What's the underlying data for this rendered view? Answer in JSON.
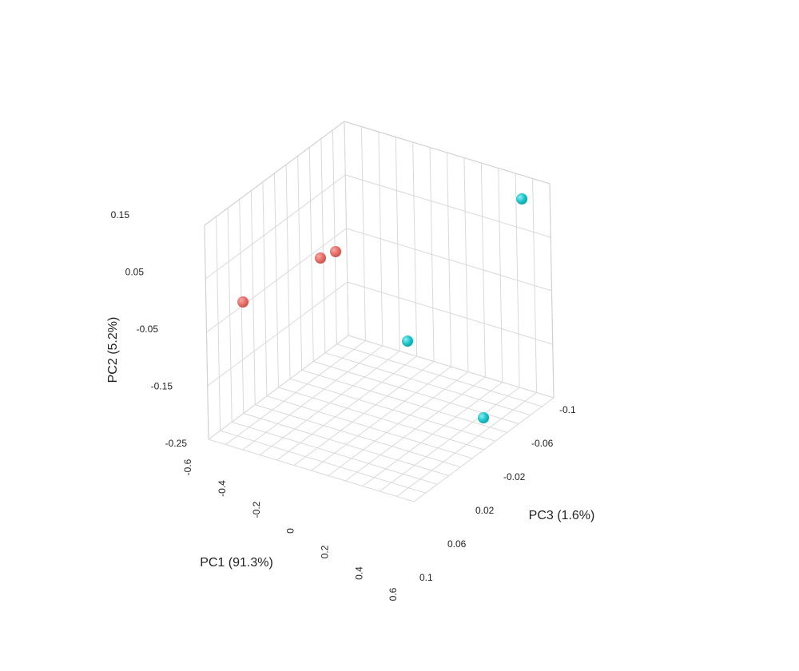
{
  "chart_data": {
    "type": "scatter3d",
    "axes": {
      "x": {
        "label": "PC1 (91.3%)",
        "range": [
          -0.6,
          0.6
        ],
        "ticks": [
          -0.6,
          -0.4,
          -0.2,
          0,
          0.2,
          0.4,
          0.6
        ],
        "tick_labels": [
          "-0.6",
          "-0.4",
          "-0.2",
          "0",
          "0.2",
          "0.4",
          "0.6"
        ]
      },
      "y": {
        "label": "PC2 (5.2%)",
        "range": [
          -0.25,
          0.15
        ],
        "ticks": [
          -0.25,
          -0.15,
          -0.05,
          0.05,
          0.15
        ],
        "tick_labels": [
          "-0.25",
          "-0.15",
          "-0.05",
          "0.05",
          "0.15"
        ]
      },
      "z": {
        "label": "PC3 (1.6%)",
        "range": [
          -0.1,
          0.1
        ],
        "ticks": [
          -0.1,
          -0.06,
          -0.02,
          0.02,
          0.06,
          0.1
        ],
        "tick_labels": [
          "-0.1",
          "-0.06",
          "-0.02",
          "0.02",
          "0.06",
          "0.1"
        ]
      }
    },
    "grid": true,
    "groups": [
      {
        "color": "#e8706a",
        "points": [
          {
            "x": -0.55,
            "y": 0.07,
            "z": -0.04
          },
          {
            "x": -0.52,
            "y": 0.17,
            "z": -0.08
          },
          {
            "x": -0.58,
            "y": 0.17,
            "z": -0.06
          }
        ]
      },
      {
        "color": "#1ec6cc",
        "points": [
          {
            "x": 0.57,
            "y": 0.1,
            "z": -0.09
          },
          {
            "x": 0.53,
            "y": -0.09,
            "z": -0.07
          },
          {
            "x": 0.4,
            "y": -0.18,
            "z": 0.05
          }
        ]
      }
    ]
  }
}
